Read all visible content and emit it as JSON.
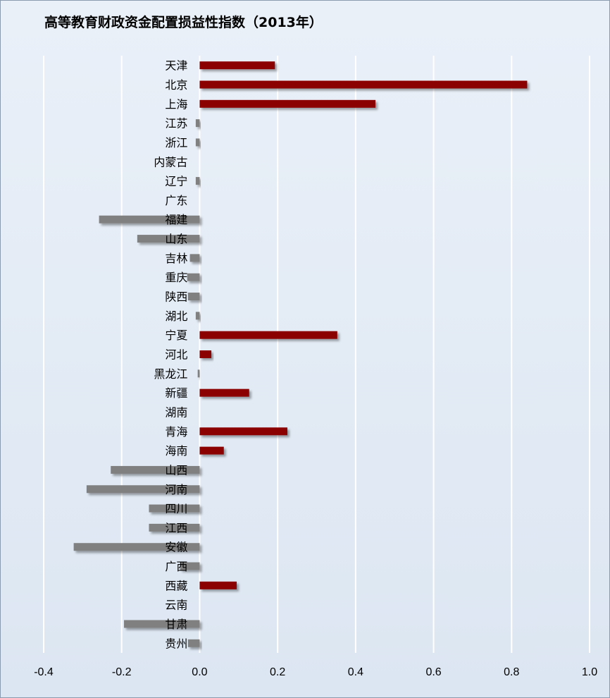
{
  "chart_data": {
    "type": "bar",
    "orientation": "horizontal",
    "title": "高等教育财政资金配置损益性指数（2013年）",
    "categories": [
      "天津",
      "北京",
      "上海",
      "江苏",
      "浙江",
      "内蒙古",
      "辽宁",
      "广东",
      "福建",
      "山东",
      "吉林",
      "重庆",
      "陕西",
      "湖北",
      "宁夏",
      "河北",
      "黑龙江",
      "新疆",
      "湖南",
      "青海",
      "海南",
      "山西",
      "河南",
      "四川",
      "江西",
      "安徽",
      "广西",
      "西藏",
      "云南",
      "甘肃",
      "贵州"
    ],
    "values": [
      0.193,
      0.84,
      0.451,
      -0.01,
      -0.01,
      0.0,
      -0.01,
      0.0,
      -0.258,
      -0.16,
      -0.025,
      -0.032,
      -0.03,
      -0.01,
      0.353,
      0.03,
      -0.005,
      0.127,
      0.0,
      0.225,
      0.062,
      -0.228,
      -0.29,
      -0.13,
      -0.13,
      -0.323,
      -0.05,
      0.095,
      0.0,
      -0.194,
      -0.03
    ],
    "xlim": [
      -0.4,
      1.0
    ],
    "x_ticks": [
      -0.4,
      -0.2,
      0.0,
      0.2,
      0.4,
      0.6,
      0.8,
      1.0
    ],
    "x_tick_labels": [
      "-0.4",
      "-0.2",
      "0.0",
      "0.2",
      "0.4",
      "0.6",
      "0.8",
      "1.0"
    ],
    "xlabel": "",
    "ylabel": "",
    "grid": "vertical",
    "legend": "none",
    "colors": {
      "positive": "#8b0000",
      "negative": "#808080",
      "grid": "#ffffff",
      "background": "#dfe8f3"
    }
  }
}
